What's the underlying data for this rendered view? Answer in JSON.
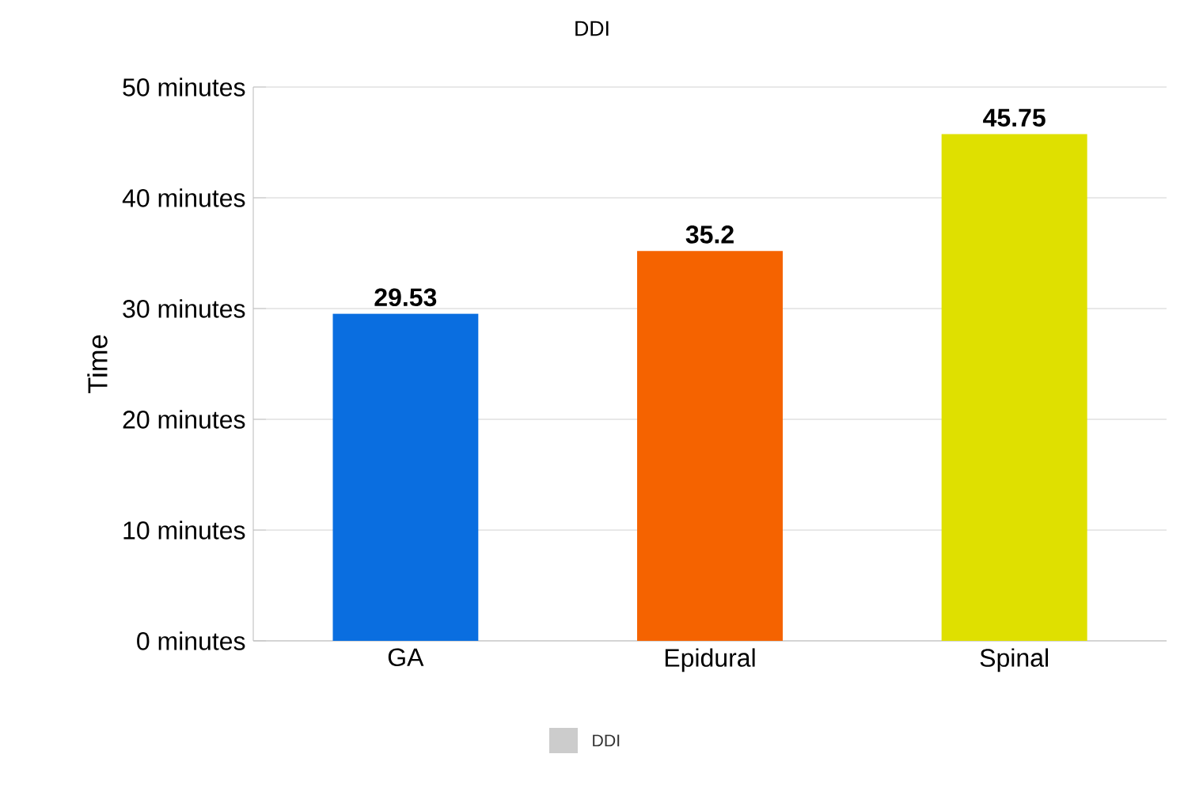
{
  "chart_data": {
    "type": "bar",
    "title": "DDI",
    "ylabel": "Time",
    "categories": [
      "GA",
      "Epidural",
      "Spinal"
    ],
    "series": [
      {
        "name": "DDI",
        "color": "#cccccc",
        "colors": [
          "#0a6ee0",
          "#f56300",
          "#dfe000"
        ],
        "values": [
          29.53,
          35.2,
          45.75
        ]
      }
    ],
    "ylim": [
      0,
      50
    ],
    "yticks": [
      {
        "value": 0,
        "label": "0 minutes"
      },
      {
        "value": 10,
        "label": "10 minutes"
      },
      {
        "value": 20,
        "label": "20 minutes"
      },
      {
        "value": 30,
        "label": "30 minutes"
      },
      {
        "value": 40,
        "label": "40 minutes"
      },
      {
        "value": 50,
        "label": "50 minutes"
      }
    ],
    "grid": "y",
    "legend": "bottom",
    "data_labels": true
  }
}
